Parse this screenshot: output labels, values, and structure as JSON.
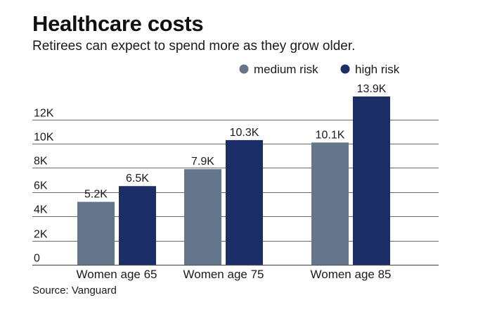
{
  "title": "Healthcare costs",
  "subtitle": "Retirees can expect to spend more as they grow older.",
  "source": "Source: Vanguard",
  "chart_data": {
    "type": "bar",
    "title": "Healthcare costs",
    "subtitle": "Retirees can expect to spend more as they grow older.",
    "categories": [
      "Women age 65",
      "Women age 75",
      "Women age 85"
    ],
    "series": [
      {
        "name": "medium risk",
        "color": "#66768a",
        "values": [
          5.2,
          7.9,
          10.1
        ],
        "labels": [
          "5.2K",
          "7.9K",
          "10.1K"
        ]
      },
      {
        "name": "high risk",
        "color": "#1b2f66",
        "values": [
          6.5,
          10.3,
          13.9
        ],
        "labels": [
          "6.5K",
          "10.3K",
          "13.9K"
        ]
      }
    ],
    "yticks": [
      0,
      2,
      4,
      6,
      8,
      10,
      12
    ],
    "ytick_labels": [
      "0",
      "2K",
      "4K",
      "6K",
      "8K",
      "10K",
      "12K"
    ],
    "ylim": [
      0,
      13.9
    ],
    "xlabel": "",
    "ylabel": "",
    "grid": true,
    "legend_position": "top-right",
    "gridline_color": "#6b6b6b",
    "axis_color": "#555555"
  }
}
